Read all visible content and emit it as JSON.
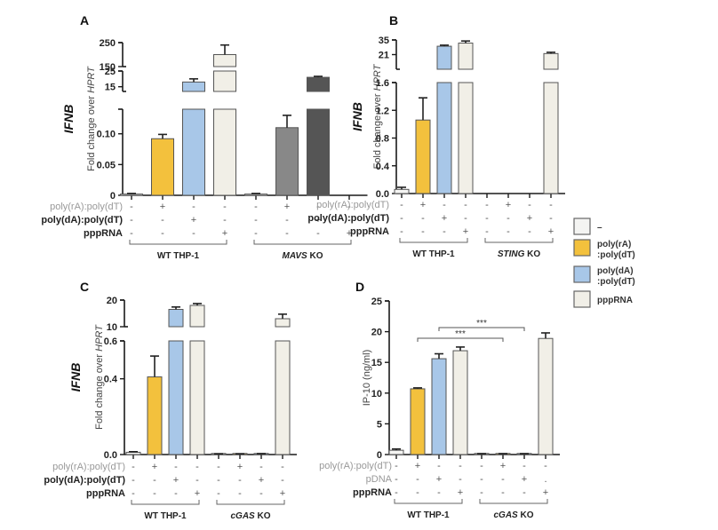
{
  "colors": {
    "none": "#f4f4f2",
    "rA": "#f3c13d",
    "dA": "#a8c7e8",
    "ppp": "#f1efe7",
    "ko_rA": "#888888",
    "ko_dA": "#555555",
    "axis": "#1a1a1a",
    "grey_label": "#999999"
  },
  "legend": {
    "items": [
      {
        "label_lines": [
          "–"
        ],
        "color_key": "none"
      },
      {
        "label_lines": [
          "poly(rA)",
          ":poly(dT)"
        ],
        "color_key": "rA"
      },
      {
        "label_lines": [
          "poly(dA)",
          ":poly(dT)"
        ],
        "color_key": "dA"
      },
      {
        "label_lines": [
          "pppRNA"
        ],
        "color_key": "ppp"
      }
    ]
  },
  "chart_data": [
    {
      "panel": "A",
      "type": "bar",
      "ylabel_gene": "IFNB",
      "ylabel": "Fold change over HPRT",
      "segments": [
        {
          "range": [
            0,
            0.14
          ],
          "ticks": [
            0,
            0.05,
            0.1
          ],
          "tick_labels": [
            "0",
            "0.05",
            "0.10"
          ]
        },
        {
          "range": [
            12,
            25
          ],
          "ticks": [
            15,
            25
          ],
          "tick_labels": [
            "15",
            "25"
          ]
        },
        {
          "range": [
            150,
            250
          ],
          "ticks": [
            150,
            250
          ],
          "tick_labels": [
            "150",
            "250"
          ]
        }
      ],
      "values": [
        0.002,
        0.092,
        18,
        200,
        0.002,
        0.11,
        21,
        0
      ],
      "errors": [
        0.001,
        0.007,
        2,
        40,
        0.001,
        0.02,
        0.6,
        0
      ],
      "bar_colors": [
        "none",
        "rA",
        "dA",
        "ppp",
        "none",
        "ko_rA",
        "ko_dA",
        "none"
      ],
      "conditions": [
        {
          "label": "poly(rA):poly(dT)",
          "grey": true,
          "signs": [
            "-",
            "+",
            "-",
            "-",
            "-",
            "+",
            "-",
            "-"
          ]
        },
        {
          "label": "poly(dA):poly(dT)",
          "grey": false,
          "signs": [
            "-",
            "-",
            "+",
            "-",
            "-",
            "-",
            "+",
            "-"
          ]
        },
        {
          "label": "pppRNA",
          "grey": false,
          "signs": [
            "-",
            "-",
            "-",
            "+",
            "-",
            "-",
            "-",
            "+"
          ]
        }
      ],
      "groups": [
        {
          "label": "WT THP-1",
          "italic_prefix": ""
        },
        {
          "label": " KO",
          "italic_prefix": "MAVS"
        }
      ],
      "significance": []
    },
    {
      "panel": "B",
      "type": "bar",
      "ylabel_gene": "IFNB",
      "ylabel": "Fold change over HPRT",
      "segments": [
        {
          "range": [
            0,
            1.6
          ],
          "ticks": [
            0,
            0.4,
            0.8,
            1.2,
            1.6
          ],
          "tick_labels": [
            "0.0",
            "0.4",
            "0.8",
            "1.2",
            "1.6"
          ]
        },
        {
          "range": [
            7,
            35
          ],
          "ticks": [
            21,
            35
          ],
          "tick_labels": [
            "21",
            "35"
          ]
        }
      ],
      "values": [
        0.06,
        1.06,
        29,
        32,
        0,
        0,
        0,
        22
      ],
      "errors": [
        0.03,
        0.32,
        1,
        2,
        0,
        0,
        0,
        1.2
      ],
      "bar_colors": [
        "none",
        "rA",
        "dA",
        "ppp",
        "none",
        "rA",
        "dA",
        "ppp"
      ],
      "conditions": [
        {
          "label": "poly(rA):poly(dT)",
          "grey": true,
          "signs": [
            "-",
            "+",
            "-",
            "-",
            "-",
            "+",
            "-",
            "-"
          ]
        },
        {
          "label": "poly(dA):poly(dT)",
          "grey": false,
          "signs": [
            "-",
            "-",
            "+",
            "-",
            "-",
            "-",
            "+",
            "-"
          ]
        },
        {
          "label": "pppRNA",
          "grey": false,
          "signs": [
            "-",
            "-",
            "-",
            "+",
            "-",
            "-",
            "-",
            "+"
          ]
        }
      ],
      "groups": [
        {
          "label": "WT THP-1",
          "italic_prefix": ""
        },
        {
          "label": " KO",
          "italic_prefix": "STING"
        }
      ],
      "significance": []
    },
    {
      "panel": "C",
      "type": "bar",
      "ylabel_gene": "IFNB",
      "ylabel": "Fold change over HPRT",
      "segments": [
        {
          "range": [
            0,
            0.6
          ],
          "ticks": [
            0,
            0.4,
            0.6
          ],
          "tick_labels": [
            "0.0",
            "0.4",
            "0.6"
          ]
        },
        {
          "range": [
            10,
            20
          ],
          "ticks": [
            10,
            20
          ],
          "tick_labels": [
            "10",
            "20"
          ]
        }
      ],
      "values": [
        0.012,
        0.41,
        16.5,
        18,
        0.002,
        0.002,
        0.003,
        13
      ],
      "errors": [
        0.003,
        0.11,
        0.9,
        0.7,
        0.002,
        0.002,
        0.002,
        1.7
      ],
      "bar_colors": [
        "none",
        "rA",
        "dA",
        "ppp",
        "none",
        "rA",
        "dA",
        "ppp"
      ],
      "conditions": [
        {
          "label": "poly(rA):poly(dT)",
          "grey": true,
          "signs": [
            "-",
            "+",
            "-",
            "-",
            "-",
            "+",
            "-",
            "-"
          ]
        },
        {
          "label": "poly(dA):poly(dT)",
          "grey": false,
          "signs": [
            "-",
            "-",
            "+",
            "-",
            "-",
            "-",
            "+",
            "-"
          ]
        },
        {
          "label": "pppRNA",
          "grey": false,
          "signs": [
            "-",
            "-",
            "-",
            "+",
            "-",
            "-",
            "-",
            "+"
          ]
        }
      ],
      "groups": [
        {
          "label": "WT THP-1",
          "italic_prefix": ""
        },
        {
          "label": " KO",
          "italic_prefix": "cGAS"
        }
      ],
      "significance": []
    },
    {
      "panel": "D",
      "type": "bar",
      "ylabel_gene": "",
      "ylabel": "IP-10 (ng/ml)",
      "segments": [
        {
          "range": [
            0,
            25
          ],
          "ticks": [
            0,
            5,
            10,
            15,
            20,
            25
          ],
          "tick_labels": [
            "0",
            "5",
            "10",
            "15",
            "20",
            "25"
          ]
        }
      ],
      "values": [
        0.7,
        10.7,
        15.6,
        16.9,
        0.1,
        0.1,
        0.1,
        18.9
      ],
      "errors": [
        0.2,
        0.15,
        0.8,
        0.6,
        0.05,
        0.05,
        0.05,
        0.9
      ],
      "bar_colors": [
        "none",
        "rA",
        "dA",
        "ppp",
        "none",
        "rA",
        "dA",
        "ppp"
      ],
      "conditions": [
        {
          "label": "poly(rA):poly(dT)",
          "grey": true,
          "signs": [
            "-",
            "+",
            "-",
            "-",
            "-",
            "+",
            "-",
            "-"
          ]
        },
        {
          "label": "pDNA",
          "grey": true,
          "signs": [
            "-",
            "-",
            "+",
            "-",
            "-",
            "-",
            "+",
            "."
          ]
        },
        {
          "label": "pppRNA",
          "grey": false,
          "signs": [
            "-",
            "-",
            "-",
            "+",
            "-",
            "-",
            "-",
            "+"
          ]
        }
      ],
      "groups": [
        {
          "label": "WT THP-1",
          "italic_prefix": ""
        },
        {
          "label": " KO",
          "italic_prefix": "cGAS"
        }
      ],
      "significance": [
        {
          "from": 1,
          "to": 5,
          "label": "***",
          "level": 0
        },
        {
          "from": 2,
          "to": 6,
          "label": "***",
          "level": 1
        }
      ]
    }
  ]
}
